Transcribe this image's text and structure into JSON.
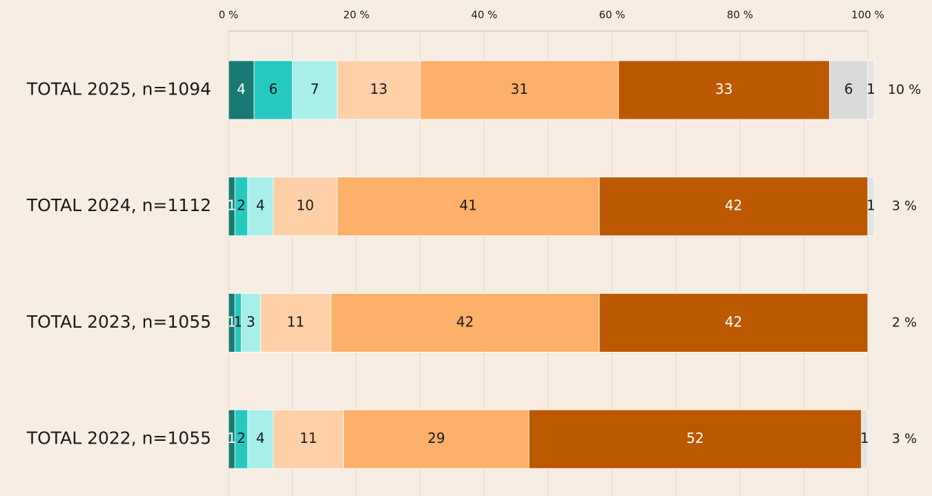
{
  "chart_data": {
    "type": "stacked_barh",
    "categories": [
      "TOTAL 2025, n=1094",
      "TOTAL 2024, n=1112",
      "TOTAL 2023, n=1055",
      "TOTAL 2022, n=1055"
    ],
    "series": [
      {
        "color": "#1a7a72",
        "label_color": "#ffffff",
        "values": [
          4,
          1,
          1,
          1
        ]
      },
      {
        "color": "#26c9c0",
        "label_color": "#1a1a1a",
        "values": [
          6,
          2,
          1,
          2
        ]
      },
      {
        "color": "#a8efe9",
        "label_color": "#1a1a1a",
        "values": [
          7,
          4,
          3,
          4
        ]
      },
      {
        "color": "#fdd0a8",
        "label_color": "#1a1a1a",
        "values": [
          13,
          10,
          11,
          11
        ]
      },
      {
        "color": "#fdb06a",
        "label_color": "#1a1a1a",
        "values": [
          31,
          41,
          42,
          29
        ]
      },
      {
        "color": "#bb5800",
        "label_color": "#ffffff",
        "values": [
          33,
          42,
          42,
          52
        ]
      },
      {
        "color": "#d9d9d9",
        "label_color": "#1a1a1a",
        "values": [
          6,
          null,
          null,
          null
        ]
      },
      {
        "color": "#e4e4e4",
        "label_color": "#1a1a1a",
        "values": [
          1,
          1,
          null,
          1
        ]
      }
    ],
    "annotations": [
      "10 %",
      "3 %",
      "2 %",
      "3 %"
    ],
    "xlim": [
      0,
      100
    ],
    "xticks": [
      {
        "value": 0,
        "label": "0 %"
      },
      {
        "value": 20,
        "label": "20 %"
      },
      {
        "value": 40,
        "label": "40 %"
      },
      {
        "value": 60,
        "label": "60 %"
      },
      {
        "value": 80,
        "label": "80 %"
      },
      {
        "value": 100,
        "label": "100 %"
      }
    ],
    "minor_xticks": [
      10,
      30,
      50,
      70,
      90
    ],
    "grid": true
  }
}
